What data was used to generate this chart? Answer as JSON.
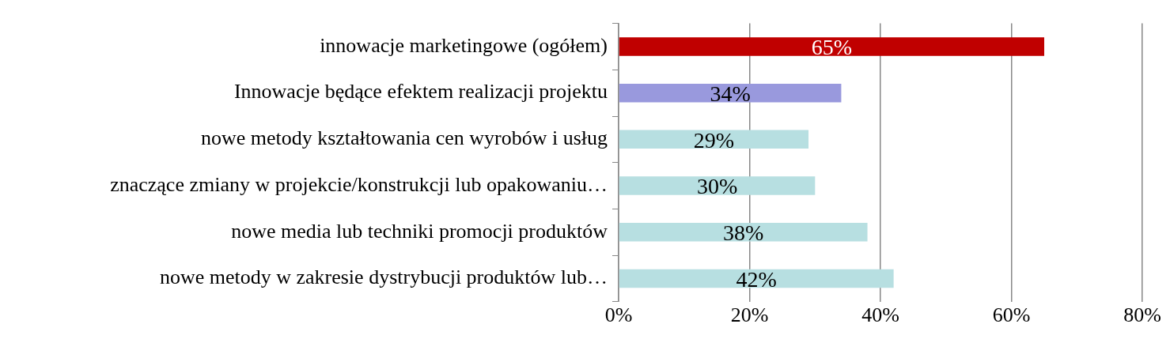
{
  "chart_data": {
    "type": "bar",
    "orientation": "horizontal",
    "categories": [
      "innowacje marketingowe (ogółem)",
      "Innowacje będące efektem realizacji projektu",
      "nowe metody kształtowania cen wyrobów i usług",
      "znaczące zmiany w projekcie/konstrukcji lub opakowaniu…",
      "nowe media lub techniki promocji produktów",
      "nowe metody w zakresie dystrybucji produktów lub…"
    ],
    "values": [
      65,
      34,
      29,
      30,
      38,
      42
    ],
    "colors": [
      "#c00000",
      "#9999dd",
      "#b7dfe1",
      "#b7dfe1",
      "#b7dfe1",
      "#b7dfe1"
    ],
    "value_labels": [
      "65%",
      "34%",
      "29%",
      "30%",
      "38%",
      "42%"
    ],
    "xlim": [
      0,
      80
    ],
    "xticks": [
      {
        "value": 0,
        "label": "0%"
      },
      {
        "value": 20,
        "label": "20%"
      },
      {
        "value": 40,
        "label": "40%"
      },
      {
        "value": 60,
        "label": "60%"
      },
      {
        "value": 80,
        "label": "80%"
      }
    ],
    "grid": "x",
    "legend": false
  }
}
